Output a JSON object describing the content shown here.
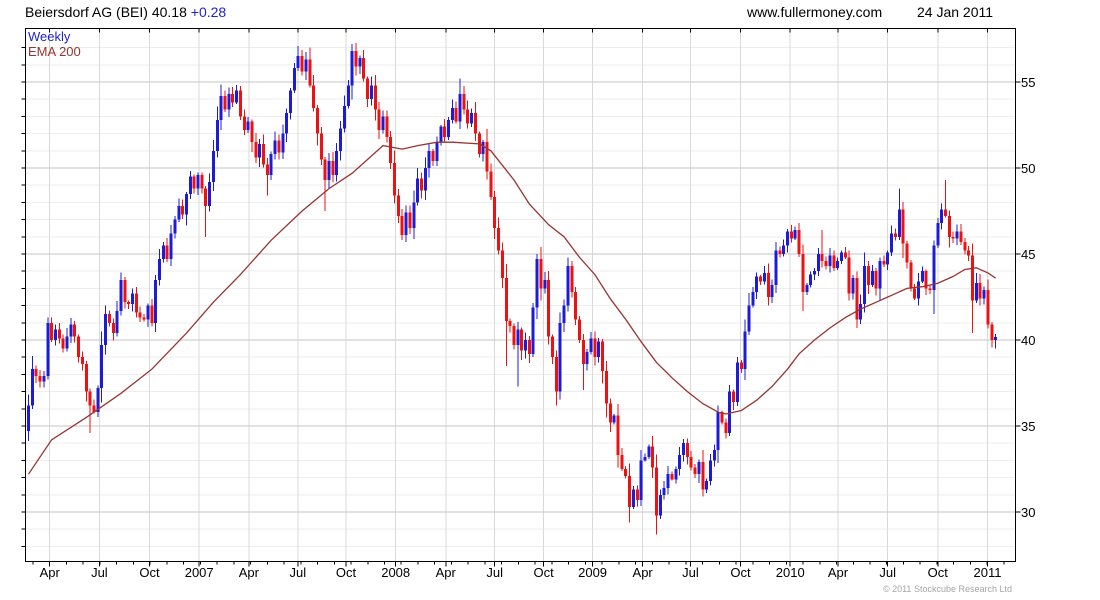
{
  "header": {
    "instrument": "Beiersdorf AG (BEI)",
    "price": "40.18",
    "change": "+0.28",
    "site": "www.fullermoney.com",
    "date": "24 Jan 2011"
  },
  "legend": {
    "series_label": "Weekly",
    "overlay_label": "EMA 200"
  },
  "footer": {
    "copyright": "© 2011 Stockcube Research Ltd"
  },
  "chart_data": {
    "type": "candlestick",
    "title": "Beiersdorf AG (BEI) 40.18 +0.28",
    "interval": "Weekly",
    "overlay": "EMA 200",
    "last_price": 40.18,
    "change": 0.28,
    "start": "2006-02",
    "end": "2011-01",
    "ylim": [
      27.2,
      58.0
    ],
    "y_ticks": [
      30,
      35,
      40,
      45,
      50,
      55
    ],
    "grid": "on",
    "legend_position": "top-left",
    "x_ticks": [
      {
        "label": "Apr",
        "week": 5.5
      },
      {
        "label": "Jul",
        "week": 18.4
      },
      {
        "label": "Oct",
        "week": 31.4
      },
      {
        "label": "2007",
        "week": 44.3
      },
      {
        "label": "Apr",
        "week": 57.2
      },
      {
        "label": "Jul",
        "week": 69.9
      },
      {
        "label": "Oct",
        "week": 82.4
      },
      {
        "label": "2008",
        "week": 95.3
      },
      {
        "label": "Apr",
        "week": 108.3
      },
      {
        "label": "Jul",
        "week": 121.0
      },
      {
        "label": "Oct",
        "week": 133.7
      },
      {
        "label": "2009",
        "week": 146.4
      },
      {
        "label": "Apr",
        "week": 159.4
      },
      {
        "label": "Jul",
        "week": 171.8
      },
      {
        "label": "Oct",
        "week": 184.8
      },
      {
        "label": "2010",
        "week": 197.7
      },
      {
        "label": "Apr",
        "week": 210.1
      },
      {
        "label": "Jul",
        "week": 223.0
      },
      {
        "label": "Oct",
        "week": 236.0
      },
      {
        "label": "2011",
        "week": 248.9
      }
    ],
    "first_open": 34.7,
    "weekly_closes": [
      36.2,
      38.3,
      37.9,
      37.6,
      37.9,
      41.0,
      40.0,
      40.6,
      40.1,
      39.5,
      40.2,
      40.9,
      40.2,
      39.0,
      38.6,
      37.0,
      36.2,
      35.8,
      37.2,
      39.7,
      41.5,
      41.0,
      40.4,
      41.7,
      43.5,
      42.2,
      42.1,
      42.7,
      41.6,
      41.3,
      41.2,
      42.0,
      41.0,
      43.5,
      44.7,
      45.5,
      44.7,
      46.2,
      47.0,
      47.8,
      47.3,
      48.5,
      49.5,
      48.8,
      49.6,
      48.8,
      47.8,
      49.2,
      51.0,
      52.8,
      54.2,
      53.4,
      54.3,
      53.8,
      54.5,
      53.0,
      52.2,
      52.7,
      51.5,
      50.6,
      51.4,
      50.2,
      49.6,
      50.8,
      51.6,
      50.9,
      52.0,
      53.2,
      54.5,
      55.8,
      56.5,
      55.6,
      56.3,
      54.8,
      53.5,
      52.0,
      50.5,
      49.3,
      50.4,
      49.6,
      51.0,
      52.3,
      53.6,
      54.8,
      56.8,
      55.9,
      56.4,
      55.2,
      54.0,
      54.8,
      53.4,
      52.2,
      53.0,
      51.8,
      50.3,
      48.4,
      47.2,
      46.1,
      47.4,
      46.5,
      48.0,
      49.4,
      48.7,
      50.0,
      51.0,
      50.4,
      51.5,
      52.4,
      51.8,
      52.8,
      53.5,
      52.7,
      54.3,
      53.4,
      52.6,
      53.2,
      52.0,
      50.8,
      51.5,
      49.8,
      48.3,
      46.5,
      45.2,
      43.6,
      41.1,
      40.8,
      39.7,
      40.6,
      39.4,
      40.0,
      39.2,
      41.9,
      44.7,
      43.0,
      43.5,
      40.2,
      39.0,
      37.0,
      41.0,
      42.0,
      44.3,
      42.8,
      41.2,
      40.0,
      38.6,
      39.3,
      40.1,
      39.0,
      39.9,
      38.2,
      36.3,
      35.2,
      35.6,
      33.3,
      32.5,
      32.1,
      30.3,
      31.3,
      30.7,
      33.0,
      33.2,
      33.8,
      32.6,
      29.8,
      31.0,
      31.4,
      32.2,
      31.9,
      32.5,
      33.3,
      34.0,
      33.2,
      32.6,
      32.2,
      32.9,
      31.3,
      31.8,
      33.0,
      33.6,
      35.8,
      35.2,
      34.6,
      37.0,
      36.4,
      38.7,
      38.3,
      40.5,
      42.0,
      42.8,
      43.7,
      43.4,
      43.9,
      42.5,
      43.2,
      45.2,
      45.0,
      45.5,
      46.3,
      45.9,
      46.4,
      45.0,
      42.8,
      43.2,
      43.8,
      44.0,
      45.0,
      44.6,
      44.3,
      44.9,
      44.2,
      44.6,
      45.1,
      44.8,
      42.7,
      43.6,
      41.2,
      42.1,
      44.3,
      43.2,
      44.0,
      43.0,
      44.6,
      44.4,
      45.1,
      46.2,
      46.0,
      47.6,
      45.6,
      44.5,
      43.0,
      42.4,
      43.4,
      44.0,
      43.0,
      42.9,
      45.5,
      46.8,
      47.6,
      47.2,
      46.0,
      45.9,
      46.3,
      45.7,
      45.2,
      44.9,
      42.3,
      43.3,
      42.4,
      42.9,
      40.9,
      40.0,
      40.18
    ],
    "extremes": {
      "5": {
        "h": 41.3
      },
      "16": {
        "l": 34.6
      },
      "46": {
        "l": 46.0
      },
      "62": {
        "l": 48.4
      },
      "70": {
        "h": 57.1
      },
      "77": {
        "l": 47.5
      },
      "84": {
        "h": 57.2
      },
      "97": {
        "l": 45.8
      },
      "112": {
        "h": 55.2
      },
      "124": {
        "l": 38.5
      },
      "127": {
        "l": 37.3
      },
      "132": {
        "h": 45.0
      },
      "137": {
        "l": 36.2
      },
      "140": {
        "h": 44.8
      },
      "144": {
        "l": 37.1
      },
      "156": {
        "l": 29.4
      },
      "163": {
        "l": 28.7
      },
      "175": {
        "l": 30.9
      },
      "179": {
        "h": 36.2
      },
      "194": {
        "h": 45.7
      },
      "199": {
        "h": 46.6
      },
      "201": {
        "l": 41.7
      },
      "206": {
        "h": 46.4
      },
      "213": {
        "l": 42.3
      },
      "215": {
        "l": 40.7
      },
      "226": {
        "h": 48.8
      },
      "235": {
        "l": 41.5
      },
      "238": {
        "h": 49.3
      },
      "245": {
        "l": 40.4
      },
      "251": {
        "l": 39.5
      }
    },
    "ema200": [
      [
        0,
        32.2
      ],
      [
        6,
        34.2
      ],
      [
        15,
        35.5
      ],
      [
        24,
        36.9
      ],
      [
        32,
        38.3
      ],
      [
        41,
        40.4
      ],
      [
        48,
        42.2
      ],
      [
        55,
        43.8
      ],
      [
        63,
        45.8
      ],
      [
        71,
        47.5
      ],
      [
        78,
        48.8
      ],
      [
        84,
        49.7
      ],
      [
        89,
        50.7
      ],
      [
        92,
        51.3
      ],
      [
        97,
        51.1
      ],
      [
        101,
        51.3
      ],
      [
        106,
        51.5
      ],
      [
        110,
        51.5
      ],
      [
        117,
        51.4
      ],
      [
        120,
        51.0
      ],
      [
        126,
        49.3
      ],
      [
        130,
        47.9
      ],
      [
        135,
        46.7
      ],
      [
        139,
        46.0
      ],
      [
        143,
        44.8
      ],
      [
        147,
        43.8
      ],
      [
        151,
        42.4
      ],
      [
        155,
        41.2
      ],
      [
        159,
        39.9
      ],
      [
        163,
        38.7
      ],
      [
        167,
        37.8
      ],
      [
        171,
        37.0
      ],
      [
        175,
        36.3
      ],
      [
        179,
        35.8
      ],
      [
        181,
        35.7
      ],
      [
        185,
        35.9
      ],
      [
        189,
        36.5
      ],
      [
        193,
        37.3
      ],
      [
        197,
        38.3
      ],
      [
        200,
        39.2
      ],
      [
        204,
        40.0
      ],
      [
        208,
        40.7
      ],
      [
        212,
        41.3
      ],
      [
        216,
        41.8
      ],
      [
        220,
        42.2
      ],
      [
        224,
        42.6
      ],
      [
        228,
        43.0
      ],
      [
        232,
        43.1
      ],
      [
        236,
        43.3
      ],
      [
        240,
        43.7
      ],
      [
        243,
        44.1
      ],
      [
        246,
        44.2
      ],
      [
        249,
        43.9
      ],
      [
        251,
        43.6
      ]
    ],
    "colors": {
      "up": "#1c1cd8",
      "down": "#ee1111",
      "ema": "#993333",
      "grid_minor": "#eeeeee",
      "grid_major": "#c6c6c6",
      "grid_vertical": "#d9d9d9",
      "frame": "#000000",
      "change_text": "#2222cc",
      "copyright_text": "#a6a6a6"
    }
  }
}
